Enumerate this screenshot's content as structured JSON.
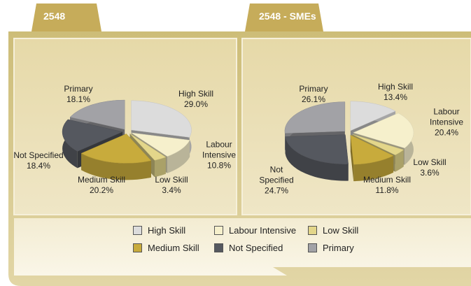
{
  "chart_data": [
    {
      "type": "pie",
      "title": "2548",
      "categories": [
        "High Skill",
        "Labour Intensive",
        "Low Skill",
        "Medium Skill",
        "Not Specified",
        "Primary"
      ],
      "values": [
        29.0,
        10.8,
        3.4,
        20.2,
        18.4,
        18.1
      ],
      "value_labels": [
        "29.0%",
        "10.8%",
        "3.4%",
        "20.2%",
        "18.4%",
        "18.1%"
      ],
      "colors": [
        "#dcdcdc",
        "#f6f0cc",
        "#e3d68a",
        "#c8ab3c",
        "#55585f",
        "#a2a2a6"
      ]
    },
    {
      "type": "pie",
      "title": "2548 - SMEs",
      "categories": [
        "High Skill",
        "Labour Intensive",
        "Low Skill",
        "Medium Skill",
        "Not Specified",
        "Primary"
      ],
      "values": [
        13.4,
        20.4,
        3.6,
        11.8,
        24.7,
        26.1
      ],
      "value_labels": [
        "13.4%",
        "20.4%",
        "3.6%",
        "11.8%",
        "24.7%",
        "26.1%"
      ],
      "colors": [
        "#dcdcdc",
        "#f6f0cc",
        "#e3d68a",
        "#c8ab3c",
        "#55585f",
        "#a2a2a6"
      ]
    }
  ]
}
